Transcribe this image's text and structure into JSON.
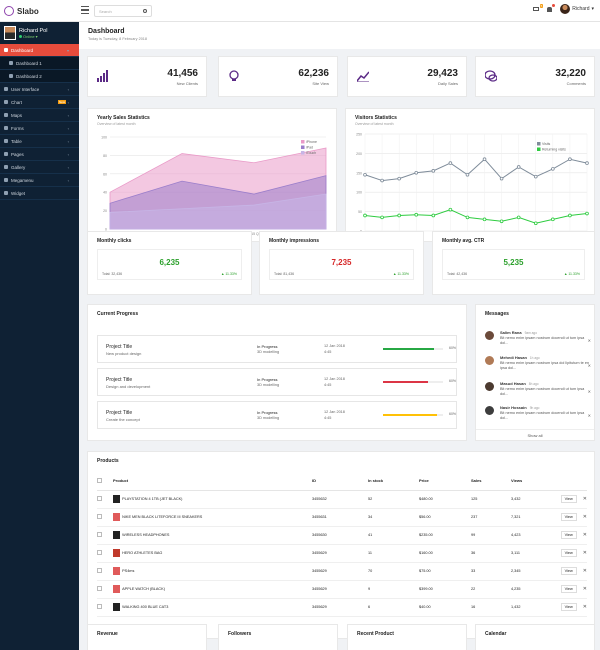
{
  "app": {
    "name": "Slabo"
  },
  "topbar": {
    "search_placeholder": "Search",
    "mail_badge": "5",
    "user_name": "Richard"
  },
  "sidebar": {
    "user_name": "Richard Pol",
    "user_status": "Online",
    "items": [
      {
        "label": "Dashboard",
        "icon": "dashboard-icon"
      },
      {
        "label": "Dashboard 1",
        "icon": "home-icon"
      },
      {
        "label": "Dashboard 2",
        "icon": "home-icon"
      },
      {
        "label": "User Interface",
        "icon": "interface-icon"
      },
      {
        "label": "Chart",
        "icon": "chart-icon",
        "badge": "New"
      },
      {
        "label": "Maps",
        "icon": "map-icon"
      },
      {
        "label": "Forms",
        "icon": "form-icon"
      },
      {
        "label": "Table",
        "icon": "table-icon"
      },
      {
        "label": "Pages",
        "icon": "pages-icon"
      },
      {
        "label": "Gallery",
        "icon": "gallery-icon"
      },
      {
        "label": "Megamenu",
        "icon": "megamenu-icon"
      },
      {
        "label": "Widget",
        "icon": "widget-icon"
      }
    ]
  },
  "page": {
    "title": "Dashboard",
    "subtitle": "Today is Tuesday, 8 February 2018"
  },
  "stats": [
    {
      "value": "41,456",
      "label": "New Clients",
      "icon": "bar-chart-icon"
    },
    {
      "value": "62,236",
      "label": "Site View",
      "icon": "lightbulb-icon"
    },
    {
      "value": "29,423",
      "label": "Daily Sales",
      "icon": "trend-icon"
    },
    {
      "value": "32,220",
      "label": "Comments",
      "icon": "chat-icon"
    }
  ],
  "yearly": {
    "title": "Yearly Sales Statistics",
    "subtitle": "Overview of latest month"
  },
  "visitors": {
    "title": "Visitors Statistics",
    "subtitle": "Overview of latest month"
  },
  "monthly": [
    {
      "title": "Monthly clicks",
      "value": "6,235",
      "total": "Total: 32,436",
      "pct": "▲ 11.33%",
      "color": "#2ca02c"
    },
    {
      "title": "Monthly impressions",
      "value": "7,235",
      "total": "Total: 81,436",
      "pct": "▲ 11.33%",
      "color": "#d62728"
    },
    {
      "title": "Monthly avg. CTR",
      "value": "5,235",
      "total": "Total: 42,436",
      "pct": "▲ 11.33%",
      "color": "#2ca02c"
    }
  ],
  "progress": {
    "title": "Current Progress",
    "rows": [
      {
        "title": "Project Title",
        "desc": "New product design",
        "status": "In Progress",
        "type": "3D modelling",
        "date": "12 Jan 2018",
        "time": "4:45",
        "pct": "60%",
        "fill": 0.85,
        "color": "#27a844"
      },
      {
        "title": "Project Title",
        "desc": "Design and development",
        "status": "In Progress",
        "type": "3D modelling",
        "date": "12 Jan 2018",
        "time": "4:45",
        "pct": "60%",
        "fill": 0.75,
        "color": "#dc3545"
      },
      {
        "title": "Project Title",
        "desc": "Create the concept",
        "status": "In Progress",
        "type": "3D modelling",
        "date": "12 Jan 2018",
        "time": "4:45",
        "pct": "60%",
        "fill": 0.9,
        "color": "#ffc107"
      }
    ]
  },
  "messages": {
    "title": "Messages",
    "show_all": "Show all",
    "items": [
      {
        "name": "Salim Rana",
        "time": "9am ago",
        "text": "Bit nemo enim ipsam nostrum docendi ut tum ipsa dol...",
        "avatar": "#6b4a3a"
      },
      {
        "name": "Mehedi Hasan",
        "time": "1h ago",
        "text": "Bit nemo enim ipsam nostrum ipsa dol lipitutum te en ipsa dol...",
        "avatar": "#b07a56"
      },
      {
        "name": "Masud Hasan",
        "time": "8h ago",
        "text": "Bit nemo enim ipsam nostrum docendi ut tum ipsa dol...",
        "avatar": "#4c3a30"
      },
      {
        "name": "Nasir Hossain",
        "time": "9h ago",
        "text": "Bit nemo enim ipsam nostrum docendi ut tum ipsa dol...",
        "avatar": "#3d3d3d"
      }
    ]
  },
  "products": {
    "title": "Products",
    "columns": [
      "Product",
      "ID",
      "In stock",
      "Price",
      "Sales",
      "Views"
    ],
    "view_label": "View",
    "rows": [
      {
        "name": "PLAYSTATION 4 1TB (JET BLACK)",
        "id": "3455632",
        "stock": "52",
        "price": "$480.00",
        "sales": "125",
        "views": "3,432",
        "color": "#222"
      },
      {
        "name": "NIKE MEN BLACK LITEFORCE III SNEAKERS",
        "id": "3455631",
        "stock": "34",
        "price": "$56.00",
        "sales": "237",
        "views": "7,321",
        "color": "#e05a5a"
      },
      {
        "name": "WIRELESS HEADPHONES",
        "id": "3455630",
        "stock": "41",
        "price": "$235.00",
        "sales": "99",
        "views": "4,423",
        "color": "#222"
      },
      {
        "name": "HERO ATHLETES BAG",
        "id": "3455629",
        "stock": "11",
        "price": "$160.00",
        "sales": "36",
        "views": "3,111",
        "color": "#c0392b"
      },
      {
        "name": "PS4ms",
        "id": "3455629",
        "stock": "70",
        "price": "$75.00",
        "sales": "33",
        "views": "2,345",
        "color": "#e05a5a"
      },
      {
        "name": "APPLE WATCH (BLACK)",
        "id": "3455629",
        "stock": "9",
        "price": "$399.00",
        "sales": "22",
        "views": "4,235",
        "color": "#e05a5a"
      },
      {
        "name": "WALKING 400 BLUE CAT3",
        "id": "3455629",
        "stock": "6",
        "price": "$40.00",
        "sales": "16",
        "views": "1,432",
        "color": "#222"
      }
    ]
  },
  "bottom_cards": [
    {
      "title": "Revenue"
    },
    {
      "title": "Followers"
    },
    {
      "title": "Recent Product"
    },
    {
      "title": "Calendar"
    }
  ],
  "chart_data": [
    {
      "type": "area",
      "categories": [
        "2015 Q1",
        "2015 Q2",
        "2015 Q3",
        "2015 Q4"
      ],
      "ylim": [
        0,
        100
      ],
      "yticks": [
        "0",
        "20",
        "40",
        "60",
        "80",
        "100"
      ],
      "xticks": [
        "2015 Q1",
        "2015 Q2",
        "2015 Q3",
        "2015 Q4"
      ],
      "series": [
        {
          "name": "iPhone",
          "values": [
            40,
            82,
            72,
            88
          ],
          "color": "#e99ac8"
        },
        {
          "name": "iPad",
          "values": [
            28,
            52,
            38,
            58
          ],
          "color": "#9b7ecb"
        },
        {
          "name": "iTouch",
          "values": [
            18,
            22,
            26,
            38
          ],
          "color": "#c7b5e6"
        }
      ]
    },
    {
      "type": "line",
      "x": [
        0,
        1,
        2,
        3,
        4,
        5,
        6,
        7,
        8,
        9,
        10,
        11,
        12,
        13
      ],
      "ylim": [
        0,
        250
      ],
      "yticks": [
        "0",
        "50",
        "100",
        "150",
        "200",
        "250"
      ],
      "xticks": [
        "0",
        "1",
        "2",
        "3",
        "4",
        "5",
        "6",
        "7",
        "8",
        "9",
        "10",
        "11",
        "12",
        "13"
      ],
      "series": [
        {
          "name": "Visits",
          "values": [
            145,
            130,
            135,
            150,
            155,
            175,
            145,
            185,
            135,
            165,
            140,
            160,
            185,
            175
          ],
          "color": "#7f8c9a"
        },
        {
          "name": "Returning visits",
          "values": [
            40,
            35,
            40,
            42,
            40,
            55,
            35,
            30,
            25,
            35,
            20,
            30,
            40,
            45
          ],
          "color": "#2ecc40"
        }
      ]
    }
  ]
}
